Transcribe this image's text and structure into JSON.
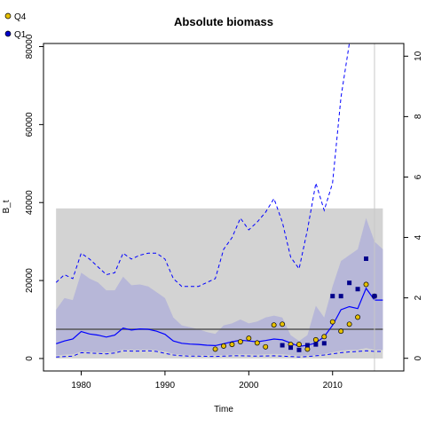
{
  "chart_data": {
    "type": "line",
    "title": "Absolute biomass",
    "xlabel": "Time",
    "ylabel": "B_t",
    "x_range": [
      1975.5,
      2018.5
    ],
    "y_range": [
      -3200,
      80800
    ],
    "y2_range": [
      -0.42,
      10.42
    ],
    "x_ticks": [
      "1980",
      "1990",
      "2000",
      "2010"
    ],
    "y_ticks": [
      "0",
      "20000",
      "40000",
      "60000",
      "80000"
    ],
    "y2_ticks": [
      "0",
      "2",
      "4",
      "6",
      "8",
      "10"
    ],
    "legend": [
      {
        "label": "Q4",
        "marker": "circle",
        "fill": "#e6c000"
      },
      {
        "label": "Q1",
        "marker": "circle",
        "fill": "#0000cc"
      }
    ],
    "colors": {
      "median_line": "#0000ff",
      "ci_band": "#b2b2d8",
      "bmsy_band": "#d3d3d3",
      "bmsy_line": "#555555",
      "q1_points": "#00008b",
      "q4_points": "#e6c000"
    },
    "reference_band": {
      "x": [
        1977,
        2016
      ],
      "y": [
        0,
        38500
      ]
    },
    "reference_line": {
      "y": 7500
    },
    "vline_x": 2015,
    "x": [
      1977,
      1978,
      1979,
      1980,
      1981,
      1982,
      1983,
      1984,
      1985,
      1986,
      1987,
      1988,
      1989,
      1990,
      1991,
      1992,
      1993,
      1994,
      1995,
      1996,
      1997,
      1998,
      1999,
      2000,
      2001,
      2002,
      2003,
      2004,
      2005,
      2006,
      2007,
      2008,
      2009,
      2010,
      2011,
      2012,
      2013,
      2014,
      2015,
      2016
    ],
    "series": [
      {
        "role": "median",
        "values": [
          3800,
          4500,
          5000,
          6900,
          6300,
          6000,
          5500,
          6000,
          7800,
          7300,
          7600,
          7500,
          7000,
          6200,
          4500,
          3900,
          3700,
          3600,
          3400,
          3300,
          3800,
          4300,
          4700,
          4500,
          4300,
          4600,
          5000,
          4800,
          4000,
          3100,
          3400,
          4000,
          5600,
          8500,
          12500,
          13300,
          12800,
          18000,
          15000,
          15000
        ]
      },
      {
        "role": "upper_ci",
        "values": [
          12500,
          15500,
          15000,
          22000,
          20500,
          19500,
          17500,
          17500,
          21000,
          18800,
          19000,
          18500,
          17000,
          15500,
          10500,
          8500,
          8000,
          7500,
          6800,
          6300,
          8500,
          9000,
          10000,
          9000,
          9500,
          10500,
          11000,
          10500,
          6000,
          4500,
          6000,
          13500,
          10500,
          18500,
          25000,
          26500,
          28000,
          36000,
          30000,
          28000
        ]
      },
      {
        "role": "lower_ci",
        "values": [
          800,
          1000,
          1100,
          1800,
          1700,
          1600,
          1600,
          1700,
          2300,
          2200,
          2200,
          2300,
          2100,
          1800,
          1200,
          1000,
          900,
          900,
          850,
          800,
          900,
          1000,
          1100,
          1050,
          1000,
          1100,
          1200,
          1100,
          900,
          700,
          800,
          900,
          1200,
          1600,
          2000,
          2200,
          2200,
          2700,
          2200,
          2200
        ]
      },
      {
        "role": "upper_95",
        "values": [
          19500,
          21500,
          20500,
          27000,
          25500,
          23500,
          21500,
          22000,
          27000,
          25500,
          26500,
          27000,
          27000,
          25500,
          20500,
          18500,
          18500,
          18500,
          19500,
          20500,
          28000,
          31000,
          36000,
          33000,
          35000,
          37500,
          41000,
          35000,
          26000,
          23000,
          33000,
          45000,
          38000,
          45000,
          67000,
          90000,
          90000,
          90000,
          90000,
          90000
        ]
      },
      {
        "role": "lower_95",
        "values": [
          400,
          500,
          600,
          1500,
          1400,
          1300,
          1200,
          1400,
          2000,
          1900,
          1900,
          2000,
          1800,
          1300,
          900,
          700,
          600,
          600,
          550,
          500,
          600,
          700,
          700,
          650,
          600,
          650,
          700,
          600,
          500,
          400,
          500,
          700,
          900,
          1200,
          1500,
          1700,
          1800,
          2000,
          1800,
          1800
        ]
      }
    ],
    "points": {
      "Q4": [
        {
          "x": 1996,
          "y": 2.4
        },
        {
          "x": 1997,
          "y": 3.2
        },
        {
          "x": 1998,
          "y": 3.6
        },
        {
          "x": 1999,
          "y": 4.3
        },
        {
          "x": 2000,
          "y": 5.2
        },
        {
          "x": 2001,
          "y": 4.0
        },
        {
          "x": 2002,
          "y": 3.0
        },
        {
          "x": 2003,
          "y": 8.6
        },
        {
          "x": 2004,
          "y": 8.8
        },
        {
          "x": 2005,
          "y": 3.6
        },
        {
          "x": 2006,
          "y": 3.6
        },
        {
          "x": 2007,
          "y": 2.4
        },
        {
          "x": 2008,
          "y": 4.8
        },
        {
          "x": 2009,
          "y": 5.6
        },
        {
          "x": 2010,
          "y": 9.4
        },
        {
          "x": 2011,
          "y": 7.0
        },
        {
          "x": 2012,
          "y": 8.8
        },
        {
          "x": 2013,
          "y": 10.6
        },
        {
          "x": 2014,
          "y": 19.0
        },
        {
          "x": 2015,
          "y": 16.0
        }
      ],
      "Q1": [
        {
          "x": 2004,
          "y": 3.4
        },
        {
          "x": 2005,
          "y": 2.8
        },
        {
          "x": 2006,
          "y": 2.2
        },
        {
          "x": 2007,
          "y": 3.4
        },
        {
          "x": 2008,
          "y": 3.6
        },
        {
          "x": 2009,
          "y": 3.9
        },
        {
          "x": 2010,
          "y": 16.0
        },
        {
          "x": 2011,
          "y": 16.0
        },
        {
          "x": 2012,
          "y": 19.4
        },
        {
          "x": 2013,
          "y": 17.8
        },
        {
          "x": 2014,
          "y": 25.6
        },
        {
          "x": 2015,
          "y": 16.0
        }
      ]
    },
    "points_scale_note": "Q1/Q4 points plotted as thousands on the left axis"
  }
}
